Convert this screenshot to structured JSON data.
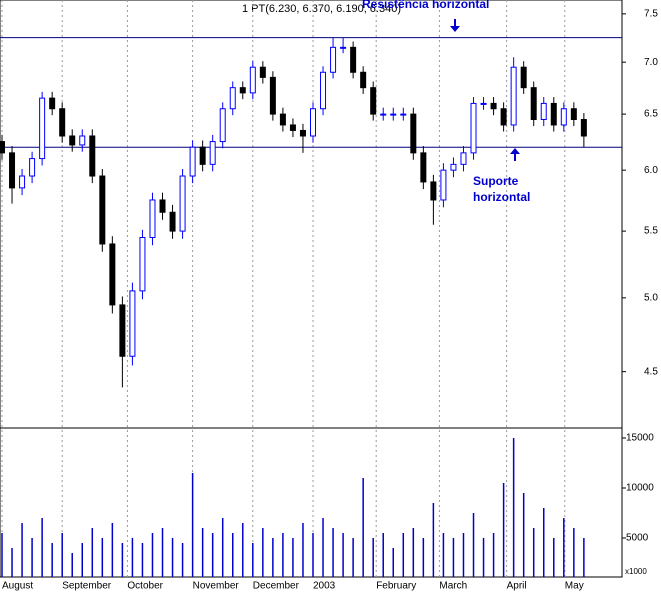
{
  "chart_data": {
    "type": "candlestick",
    "annotation": "1 PT(6.230, 6.370, 6.190, 6.340)",
    "open": [
      6.25,
      6.15,
      5.85,
      5.95,
      6.1,
      6.65,
      6.55,
      6.3,
      6.22,
      6.3,
      5.95,
      5.4,
      4.95,
      4.6,
      5.05,
      5.45,
      5.75,
      5.65,
      5.5,
      5.95,
      6.2,
      6.05,
      6.25,
      6.55,
      6.75,
      6.7,
      6.95,
      6.85,
      6.5,
      6.4,
      6.35,
      6.3,
      6.55,
      6.9,
      7.15,
      7.15,
      6.9,
      6.75,
      6.5,
      6.5,
      6.5,
      6.5,
      6.15,
      5.9,
      5.75,
      6.0,
      6.05,
      6.15,
      6.6,
      6.6,
      6.55,
      6.4,
      6.95,
      6.75,
      6.45,
      6.6,
      6.4,
      6.55,
      6.45
    ],
    "high": [
      6.31,
      6.21,
      6.01,
      6.16,
      6.71,
      6.71,
      6.61,
      6.36,
      6.36,
      6.36,
      6.01,
      5.46,
      5.01,
      5.11,
      5.51,
      5.81,
      5.81,
      5.71,
      6.01,
      6.26,
      6.26,
      6.31,
      6.61,
      6.81,
      6.81,
      7.01,
      7.01,
      6.91,
      6.56,
      6.46,
      6.41,
      6.61,
      6.96,
      7.25,
      7.25,
      7.21,
      6.96,
      6.81,
      6.56,
      6.56,
      6.56,
      6.56,
      6.21,
      5.96,
      6.06,
      6.11,
      6.21,
      6.66,
      6.66,
      6.66,
      6.61,
      7.05,
      7.01,
      6.81,
      6.66,
      6.66,
      6.61,
      6.61,
      6.51
    ],
    "low": [
      6.09,
      5.72,
      5.79,
      5.89,
      6.04,
      6.49,
      6.24,
      6.16,
      6.16,
      5.89,
      5.34,
      4.89,
      4.4,
      4.54,
      4.99,
      5.39,
      5.59,
      5.44,
      5.44,
      5.89,
      5.99,
      5.99,
      6.19,
      6.49,
      6.64,
      6.64,
      6.79,
      6.44,
      6.34,
      6.29,
      6.15,
      6.24,
      6.49,
      6.84,
      7.09,
      6.84,
      6.69,
      6.44,
      6.44,
      6.44,
      6.44,
      6.09,
      5.84,
      5.55,
      5.69,
      5.94,
      5.99,
      6.09,
      6.54,
      6.49,
      6.34,
      6.34,
      6.69,
      6.39,
      6.39,
      6.34,
      6.34,
      6.39,
      6.2
    ],
    "close": [
      6.15,
      5.85,
      5.95,
      6.1,
      6.65,
      6.55,
      6.3,
      6.22,
      6.3,
      5.95,
      5.4,
      4.95,
      4.6,
      5.05,
      5.45,
      5.75,
      5.65,
      5.5,
      5.95,
      6.2,
      6.05,
      6.25,
      6.55,
      6.75,
      6.7,
      6.95,
      6.85,
      6.5,
      6.4,
      6.35,
      6.3,
      6.55,
      6.9,
      7.15,
      7.15,
      6.9,
      6.75,
      6.5,
      6.5,
      6.5,
      6.5,
      6.15,
      5.9,
      5.75,
      6.0,
      6.05,
      6.15,
      6.6,
      6.6,
      6.55,
      6.4,
      6.95,
      6.75,
      6.45,
      6.6,
      6.4,
      6.55,
      6.45,
      6.3
    ],
    "up_color": "#0000ff",
    "down_color": "#000000",
    "ylim": [
      4.17,
      7.65
    ],
    "log_scale": true,
    "yticks": [
      4.5,
      {
        "value": 5,
        "label": "5.0"
      },
      5.5,
      {
        "value": 6,
        "label": "6.0"
      },
      6.5,
      {
        "value": 7,
        "label": "7.0"
      },
      7.5
    ],
    "xlim": [
      0,
      62
    ],
    "xticks": [
      {
        "value": 0,
        "label": "August"
      },
      {
        "value": 6,
        "label": "September"
      },
      {
        "value": 12.5,
        "label": "October"
      },
      {
        "value": 19,
        "label": "November"
      },
      {
        "value": 25,
        "label": "December"
      },
      {
        "value": 31,
        "label": "2003"
      },
      {
        "value": 37.3,
        "label": "February"
      },
      {
        "value": 43.6,
        "label": "March"
      },
      {
        "value": 50.3,
        "label": "April"
      },
      {
        "value": 56.1,
        "label": "May"
      }
    ],
    "lines": [
      {
        "value": 7.25,
        "label": [
          "Resistência horizontal"
        ]
      },
      {
        "value": 6.2,
        "label": [
          "Suporte",
          "horizontal"
        ]
      }
    ],
    "volume": [
      5500,
      4000,
      6500,
      5000,
      7000,
      4500,
      5500,
      3500,
      4500,
      6000,
      5000,
      6500,
      4500,
      5000,
      4500,
      5500,
      6000,
      5000,
      4500,
      11500,
      6000,
      5500,
      7000,
      5500,
      6500,
      4500,
      6000,
      5000,
      5500,
      5000,
      6500,
      5500,
      7000,
      6000,
      5500,
      5000,
      11000,
      5000,
      5500,
      4000,
      5500,
      6000,
      5000,
      8500,
      5500,
      5000,
      5500,
      7500,
      5000,
      5500,
      10500,
      15000,
      9500,
      6000,
      8000,
      5000,
      7000,
      6000,
      5000
    ],
    "volume_color": "#0000cc",
    "volume_lim": [
      1100,
      15800
    ],
    "volume_ticks": [
      5000,
      10000,
      15000
    ],
    "volume_unit": "x1000"
  }
}
